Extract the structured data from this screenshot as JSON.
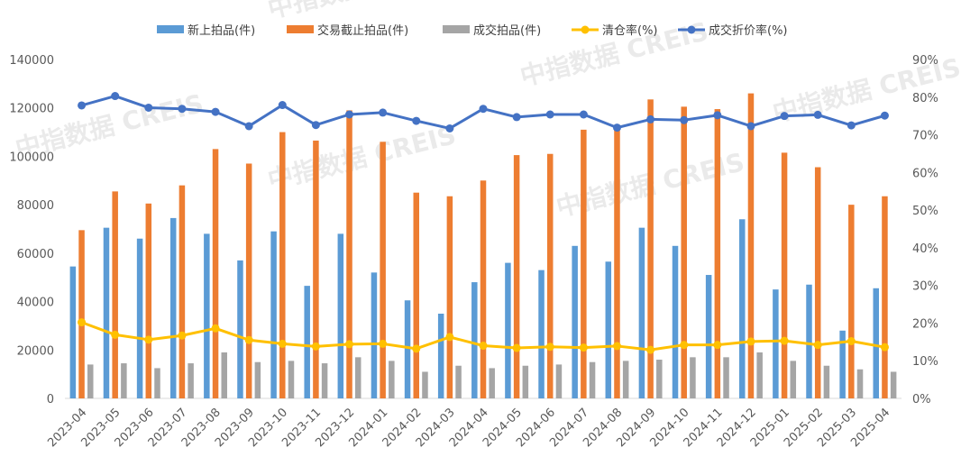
{
  "chart_data": {
    "type": "bar",
    "categories": [
      "2023-04",
      "2023-05",
      "2023-06",
      "2023-07",
      "2023-08",
      "2023-09",
      "2023-10",
      "2023-11",
      "2023-12",
      "2024-01",
      "2024-02",
      "2024-03",
      "2024-04",
      "2024-05",
      "2024-06",
      "2024-07",
      "2024-08",
      "2024-09",
      "2024-10",
      "2024-11",
      "2024-12",
      "2025-01",
      "2025-02",
      "2025-03",
      "2025-04"
    ],
    "series": [
      {
        "name": "新上拍品(件)",
        "type": "bar",
        "axis": "left",
        "color": "#5b9bd5",
        "values": [
          54500,
          70500,
          66000,
          74500,
          68000,
          57000,
          69000,
          46500,
          68000,
          52000,
          40500,
          35000,
          48000,
          56000,
          53000,
          63000,
          56500,
          70500,
          63000,
          51000,
          74000,
          45000,
          47000,
          28000,
          45500
        ]
      },
      {
        "name": "交易截止拍品(件)",
        "type": "bar",
        "axis": "left",
        "color": "#ed7d31",
        "values": [
          69500,
          85500,
          80500,
          88000,
          103000,
          97000,
          110000,
          106500,
          119000,
          106000,
          85000,
          83500,
          90000,
          100500,
          101000,
          111000,
          112000,
          123500,
          120500,
          119500,
          126000,
          101500,
          95500,
          80000,
          83500
        ]
      },
      {
        "name": "成交拍品(件)",
        "type": "bar",
        "axis": "left",
        "color": "#a5a5a5",
        "values": [
          14000,
          14500,
          12500,
          14500,
          19000,
          15000,
          15500,
          14500,
          17000,
          15500,
          11000,
          13500,
          12500,
          13500,
          14000,
          15000,
          15500,
          16000,
          17000,
          17000,
          19000,
          15500,
          13500,
          12000,
          11000
        ]
      },
      {
        "name": "清仓率(%)",
        "type": "line",
        "axis": "right",
        "color": "#ffc000",
        "values": [
          20.2,
          16.9,
          15.6,
          16.7,
          18.6,
          15.5,
          14.5,
          13.8,
          14.4,
          14.5,
          13.2,
          16.3,
          14.0,
          13.4,
          13.7,
          13.5,
          13.9,
          12.9,
          14.2,
          14.2,
          15.1,
          15.3,
          14.2,
          15.2,
          13.6
        ]
      },
      {
        "name": "成交折价率(%)",
        "type": "line",
        "axis": "right",
        "color": "#4472c4",
        "values": [
          77.8,
          80.3,
          77.2,
          76.9,
          76.1,
          72.3,
          77.9,
          72.6,
          75.4,
          75.9,
          73.7,
          71.7,
          76.9,
          74.7,
          75.4,
          75.4,
          71.9,
          74.1,
          73.9,
          75.2,
          72.3,
          75.0,
          75.3,
          72.5,
          75.1
        ]
      }
    ],
    "yleft": {
      "min": 0,
      "max": 140000,
      "ticks": [
        "0",
        "20000",
        "40000",
        "60000",
        "80000",
        "100000",
        "120000",
        "140000"
      ]
    },
    "yright": {
      "min": 0,
      "max": 90,
      "ticks": [
        "0%",
        "10%",
        "20%",
        "30%",
        "40%",
        "50%",
        "60%",
        "70%",
        "80%",
        "90%"
      ]
    },
    "grid": false,
    "legend_position": "top",
    "watermark": "中指数据 CREIS"
  }
}
